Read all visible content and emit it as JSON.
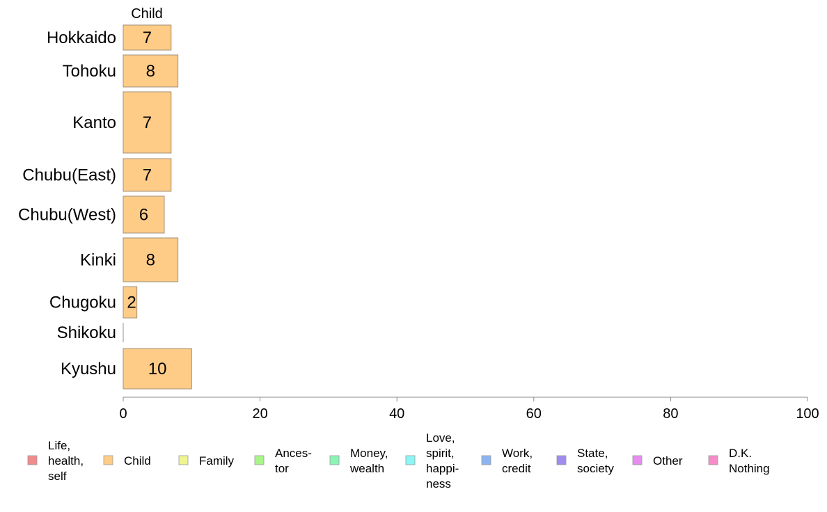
{
  "chart_data": {
    "type": "bar",
    "orientation": "horizontal",
    "title": "Child",
    "categories": [
      "Hokkaido",
      "Tohoku",
      "Kanto",
      "Chubu(East)",
      "Chubu(West)",
      "Kinki",
      "Chugoku",
      "Shikoku",
      "Kyushu"
    ],
    "series": [
      {
        "name": "Child",
        "color": "#ffcc88",
        "values": [
          7,
          8,
          7,
          7,
          6,
          8,
          2,
          0,
          10
        ],
        "labels": [
          "7",
          "8",
          "7",
          "7",
          "6",
          "8",
          "2",
          "",
          "10"
        ]
      }
    ],
    "xlim": [
      0,
      100
    ],
    "xticks": [
      0,
      20,
      40,
      60,
      80,
      100
    ],
    "grid": false,
    "legend": {
      "placement": "bottom",
      "entries": [
        {
          "lines": [
            "Life,",
            "health,",
            "self"
          ],
          "color": "#f08c8c"
        },
        {
          "lines": [
            "Child"
          ],
          "color": "#ffcc88"
        },
        {
          "lines": [
            "Family"
          ],
          "color": "#eef58f"
        },
        {
          "lines": [
            "Ances-",
            "tor"
          ],
          "color": "#a9f58c"
        },
        {
          "lines": [
            "Money,",
            "wealth"
          ],
          "color": "#8cf5b5"
        },
        {
          "lines": [
            "Love,",
            "spirit,",
            "happi-",
            "ness"
          ],
          "color": "#8cf5f5"
        },
        {
          "lines": [
            "Work,",
            "credit"
          ],
          "color": "#8cb5f0"
        },
        {
          "lines": [
            "State,",
            "society"
          ],
          "color": "#a08cf0"
        },
        {
          "lines": [
            "Other"
          ],
          "color": "#e88cf0"
        },
        {
          "lines": [
            "D.K.",
            "Nothing"
          ],
          "color": "#f58cc8"
        }
      ]
    }
  }
}
